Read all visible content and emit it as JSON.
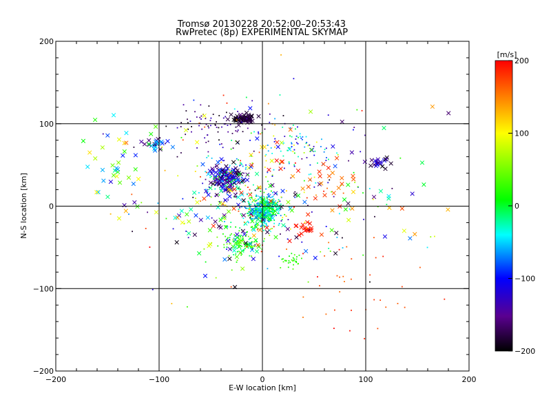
{
  "chart_data": {
    "type": "scatter",
    "title": "Tromsø 20130228 20:52:00–20:53:43",
    "subtitle": "RwPretec (8p) EXPERIMENTAL SKYMAP",
    "xlabel": "E-W location [km]",
    "ylabel": "N-S location [km]",
    "xlim": [
      -200,
      200
    ],
    "ylim": [
      -200,
      200
    ],
    "xticks": [
      "−200",
      "−100",
      "0",
      "100",
      "200"
    ],
    "yticks": [
      "−200",
      "−100",
      "0",
      "100",
      "200"
    ],
    "grid_lines": [
      -100,
      0,
      100
    ],
    "colorbar": {
      "label": "[m/s]",
      "range": [
        -200,
        200
      ],
      "ticks": [
        "−200",
        "−100",
        "0",
        "100",
        "200"
      ],
      "colors": [
        "#000000",
        "#5a0090",
        "#0000ff",
        "#00ffff",
        "#00ff00",
        "#ffff00",
        "#ff0000"
      ]
    },
    "marker_types": [
      "x",
      "dot"
    ],
    "clusters": [
      {
        "marker": "dot",
        "cx": 0,
        "cy": -5,
        "sx": 9,
        "sy": 9,
        "n": 380,
        "vmin": -90,
        "vmax": 30
      },
      {
        "marker": "x",
        "cx": 2,
        "cy": -5,
        "sx": 7,
        "sy": 8,
        "n": 70,
        "vmin": -80,
        "vmax": 20
      },
      {
        "marker": "x",
        "cx": -35,
        "cy": 35,
        "sx": 8,
        "sy": 8,
        "n": 110,
        "vmin": -200,
        "vmax": -80
      },
      {
        "marker": "dot",
        "cx": -35,
        "cy": 35,
        "sx": 10,
        "sy": 10,
        "n": 90,
        "vmin": -160,
        "vmax": 40
      },
      {
        "marker": "x",
        "cx": -18,
        "cy": 106,
        "sx": 5,
        "sy": 3,
        "n": 55,
        "vmin": -200,
        "vmax": -170
      },
      {
        "marker": "dot",
        "cx": -40,
        "cy": 100,
        "sx": 25,
        "sy": 12,
        "n": 80,
        "vmin": -200,
        "vmax": -120
      },
      {
        "marker": "dot",
        "cx": -20,
        "cy": -45,
        "sx": 10,
        "sy": 8,
        "n": 110,
        "vmin": -20,
        "vmax": 60
      },
      {
        "marker": "x",
        "cx": -18,
        "cy": -45,
        "sx": 6,
        "sy": 6,
        "n": 18,
        "vmin": -80,
        "vmax": 60
      },
      {
        "marker": "dot",
        "cx": 28,
        "cy": -65,
        "sx": 5,
        "sy": 5,
        "n": 30,
        "vmin": 10,
        "vmax": 40
      },
      {
        "marker": "x",
        "cx": 40,
        "cy": -27,
        "sx": 4,
        "sy": 4,
        "n": 16,
        "vmin": 185,
        "vmax": 200
      },
      {
        "marker": "x",
        "cx": -102,
        "cy": 75,
        "sx": 6,
        "sy": 5,
        "n": 22,
        "vmin": -200,
        "vmax": -40
      },
      {
        "marker": "x",
        "cx": 112,
        "cy": 52,
        "sx": 7,
        "sy": 5,
        "n": 20,
        "vmin": -200,
        "vmax": -100
      },
      {
        "marker": "dot",
        "cx": 30,
        "cy": 70,
        "sx": 18,
        "sy": 14,
        "n": 60,
        "vmin": -140,
        "vmax": 20
      },
      {
        "marker": "x",
        "cx": -30,
        "cy": -10,
        "sx": 30,
        "sy": 30,
        "n": 80,
        "vmin": -200,
        "vmax": 200
      },
      {
        "marker": "dot",
        "cx": 0,
        "cy": 20,
        "sx": 60,
        "sy": 55,
        "n": 260,
        "vmin": -200,
        "vmax": 200
      },
      {
        "marker": "x",
        "cx": 20,
        "cy": 20,
        "sx": 70,
        "sy": 50,
        "n": 90,
        "vmin": -200,
        "vmax": 200
      },
      {
        "marker": "x",
        "cx": -140,
        "cy": 50,
        "sx": 18,
        "sy": 28,
        "n": 35,
        "vmin": -120,
        "vmax": 120
      },
      {
        "marker": "dot",
        "cx": 90,
        "cy": -100,
        "sx": 30,
        "sy": 35,
        "n": 30,
        "vmin": 150,
        "vmax": 200
      },
      {
        "marker": "x",
        "cx": 60,
        "cy": 30,
        "sx": 30,
        "sy": 20,
        "n": 30,
        "vmin": 140,
        "vmax": 200
      }
    ]
  }
}
